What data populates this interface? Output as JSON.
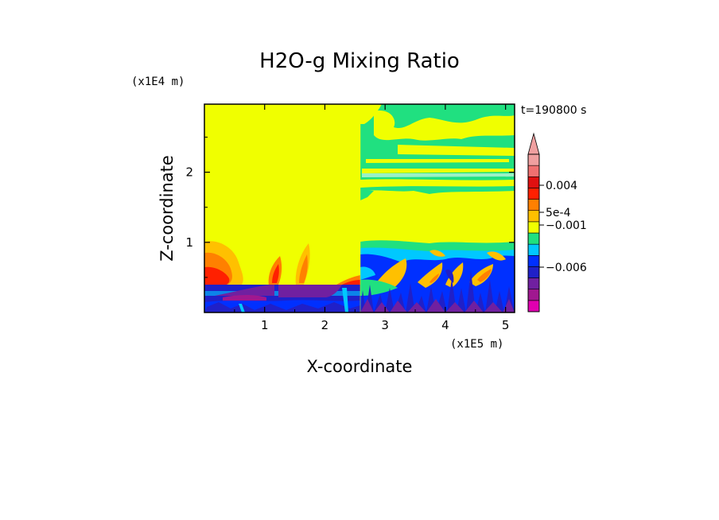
{
  "chart_data": {
    "type": "heatmap",
    "title": "H2O-g Mixing Ratio",
    "xlabel": "X-coordinate",
    "ylabel": "Z-coordinate",
    "x_unit": "(x1E5 m)",
    "y_unit": "(x1E4 m)",
    "time_label": "t=190800 s",
    "xlim": [
      0,
      5.15
    ],
    "ylim": [
      0,
      2.97
    ],
    "x_ticks": [
      1,
      2,
      3,
      4,
      5
    ],
    "y_ticks": [
      1,
      2
    ],
    "colorbar": {
      "labels": [
        {
          "text": "0.004",
          "value": 0.004
        },
        {
          "text": "5e-4",
          "value": 0.0005
        },
        {
          "text": "−0.001",
          "value": -0.001
        },
        {
          "text": "−0.006",
          "value": -0.006
        }
      ],
      "extend": "max",
      "colors": [
        "#e000b0",
        "#a01890",
        "#7020a0",
        "#2020c8",
        "#0030ff",
        "#00c8ff",
        "#20e080",
        "#f0ff00",
        "#ffc000",
        "#ff8000",
        "#ff2000",
        "#e01010",
        "#f07070",
        "#f0a0a0"
      ]
    },
    "regions": [
      {
        "x": [
          0,
          2.55
        ],
        "z": [
          0,
          2.97
        ],
        "level": "#f0ff00"
      },
      {
        "x": [
          2.55,
          5.15
        ],
        "z": [
          0,
          2.97
        ],
        "level": "#f0ff00"
      },
      {
        "x": [
          2.55,
          5.15
        ],
        "z": [
          0,
          0.8
        ],
        "level": "#0030ff"
      },
      {
        "x": [
          0,
          5.15
        ],
        "z": [
          0,
          0.4
        ],
        "level": "#2020c8"
      },
      {
        "x": [
          2.55,
          5.15
        ],
        "z": [
          1.7,
          2.97
        ],
        "level": "#20e080"
      },
      {
        "x": [
          0,
          0.6
        ],
        "z": [
          0.35,
          1.0
        ],
        "level": "#ffc000"
      },
      {
        "x": [
          0,
          0.6
        ],
        "z": [
          0.35,
          0.6
        ],
        "level": "#ff2000"
      },
      {
        "x": [
          0.35,
          2.35
        ],
        "z": [
          0.2,
          0.4
        ],
        "level": "#7020a0"
      }
    ]
  }
}
